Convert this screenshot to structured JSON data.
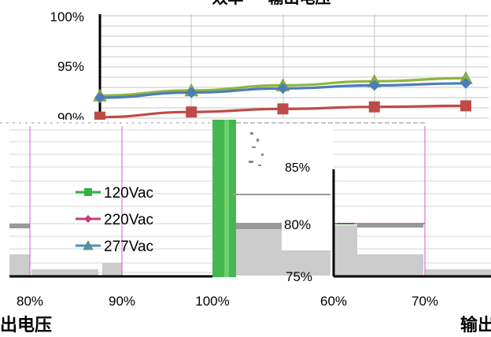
{
  "chart_data": [
    {
      "type": "line",
      "title": "效率 — 输出电压",
      "ylim": [
        90,
        100
      ],
      "y_ticks": [
        "100%",
        "95%",
        "90%"
      ],
      "x": [
        0,
        1,
        2,
        3,
        4
      ],
      "series": [
        {
          "name": "120Vac",
          "color": "#8fb53d",
          "marker": "triangle",
          "values": [
            92.2,
            92.7,
            93.2,
            93.6,
            93.9
          ]
        },
        {
          "name": "277Vac",
          "color": "#4a7ebb",
          "marker": "diamond",
          "values": [
            92.0,
            92.5,
            92.9,
            93.2,
            93.4
          ]
        },
        {
          "name": "220Vac",
          "color": "#be4b48",
          "marker": "square",
          "values": [
            90.1,
            90.6,
            90.9,
            91.1,
            91.2
          ]
        }
      ],
      "grid": true
    },
    {
      "type": "line",
      "title": "",
      "ylim": [
        75,
        90
      ],
      "y_ticks": [
        "85%",
        "80%",
        "75%"
      ],
      "x_ticks": [
        "80%",
        "90%",
        "100%"
      ],
      "xlabel": "出电压",
      "legend": [
        {
          "name": "120Vac",
          "color": "#33b24a",
          "marker": "square"
        },
        {
          "name": "220Vac",
          "color": "#c23f7d",
          "marker": "diamond"
        },
        {
          "name": "277Vac",
          "color": "#4a8fc2",
          "marker": "triangle"
        }
      ],
      "legend_position": "left"
    },
    {
      "type": "line",
      "title": "",
      "x_ticks": [
        "60%",
        "70%"
      ],
      "xlabel": "输出"
    }
  ]
}
